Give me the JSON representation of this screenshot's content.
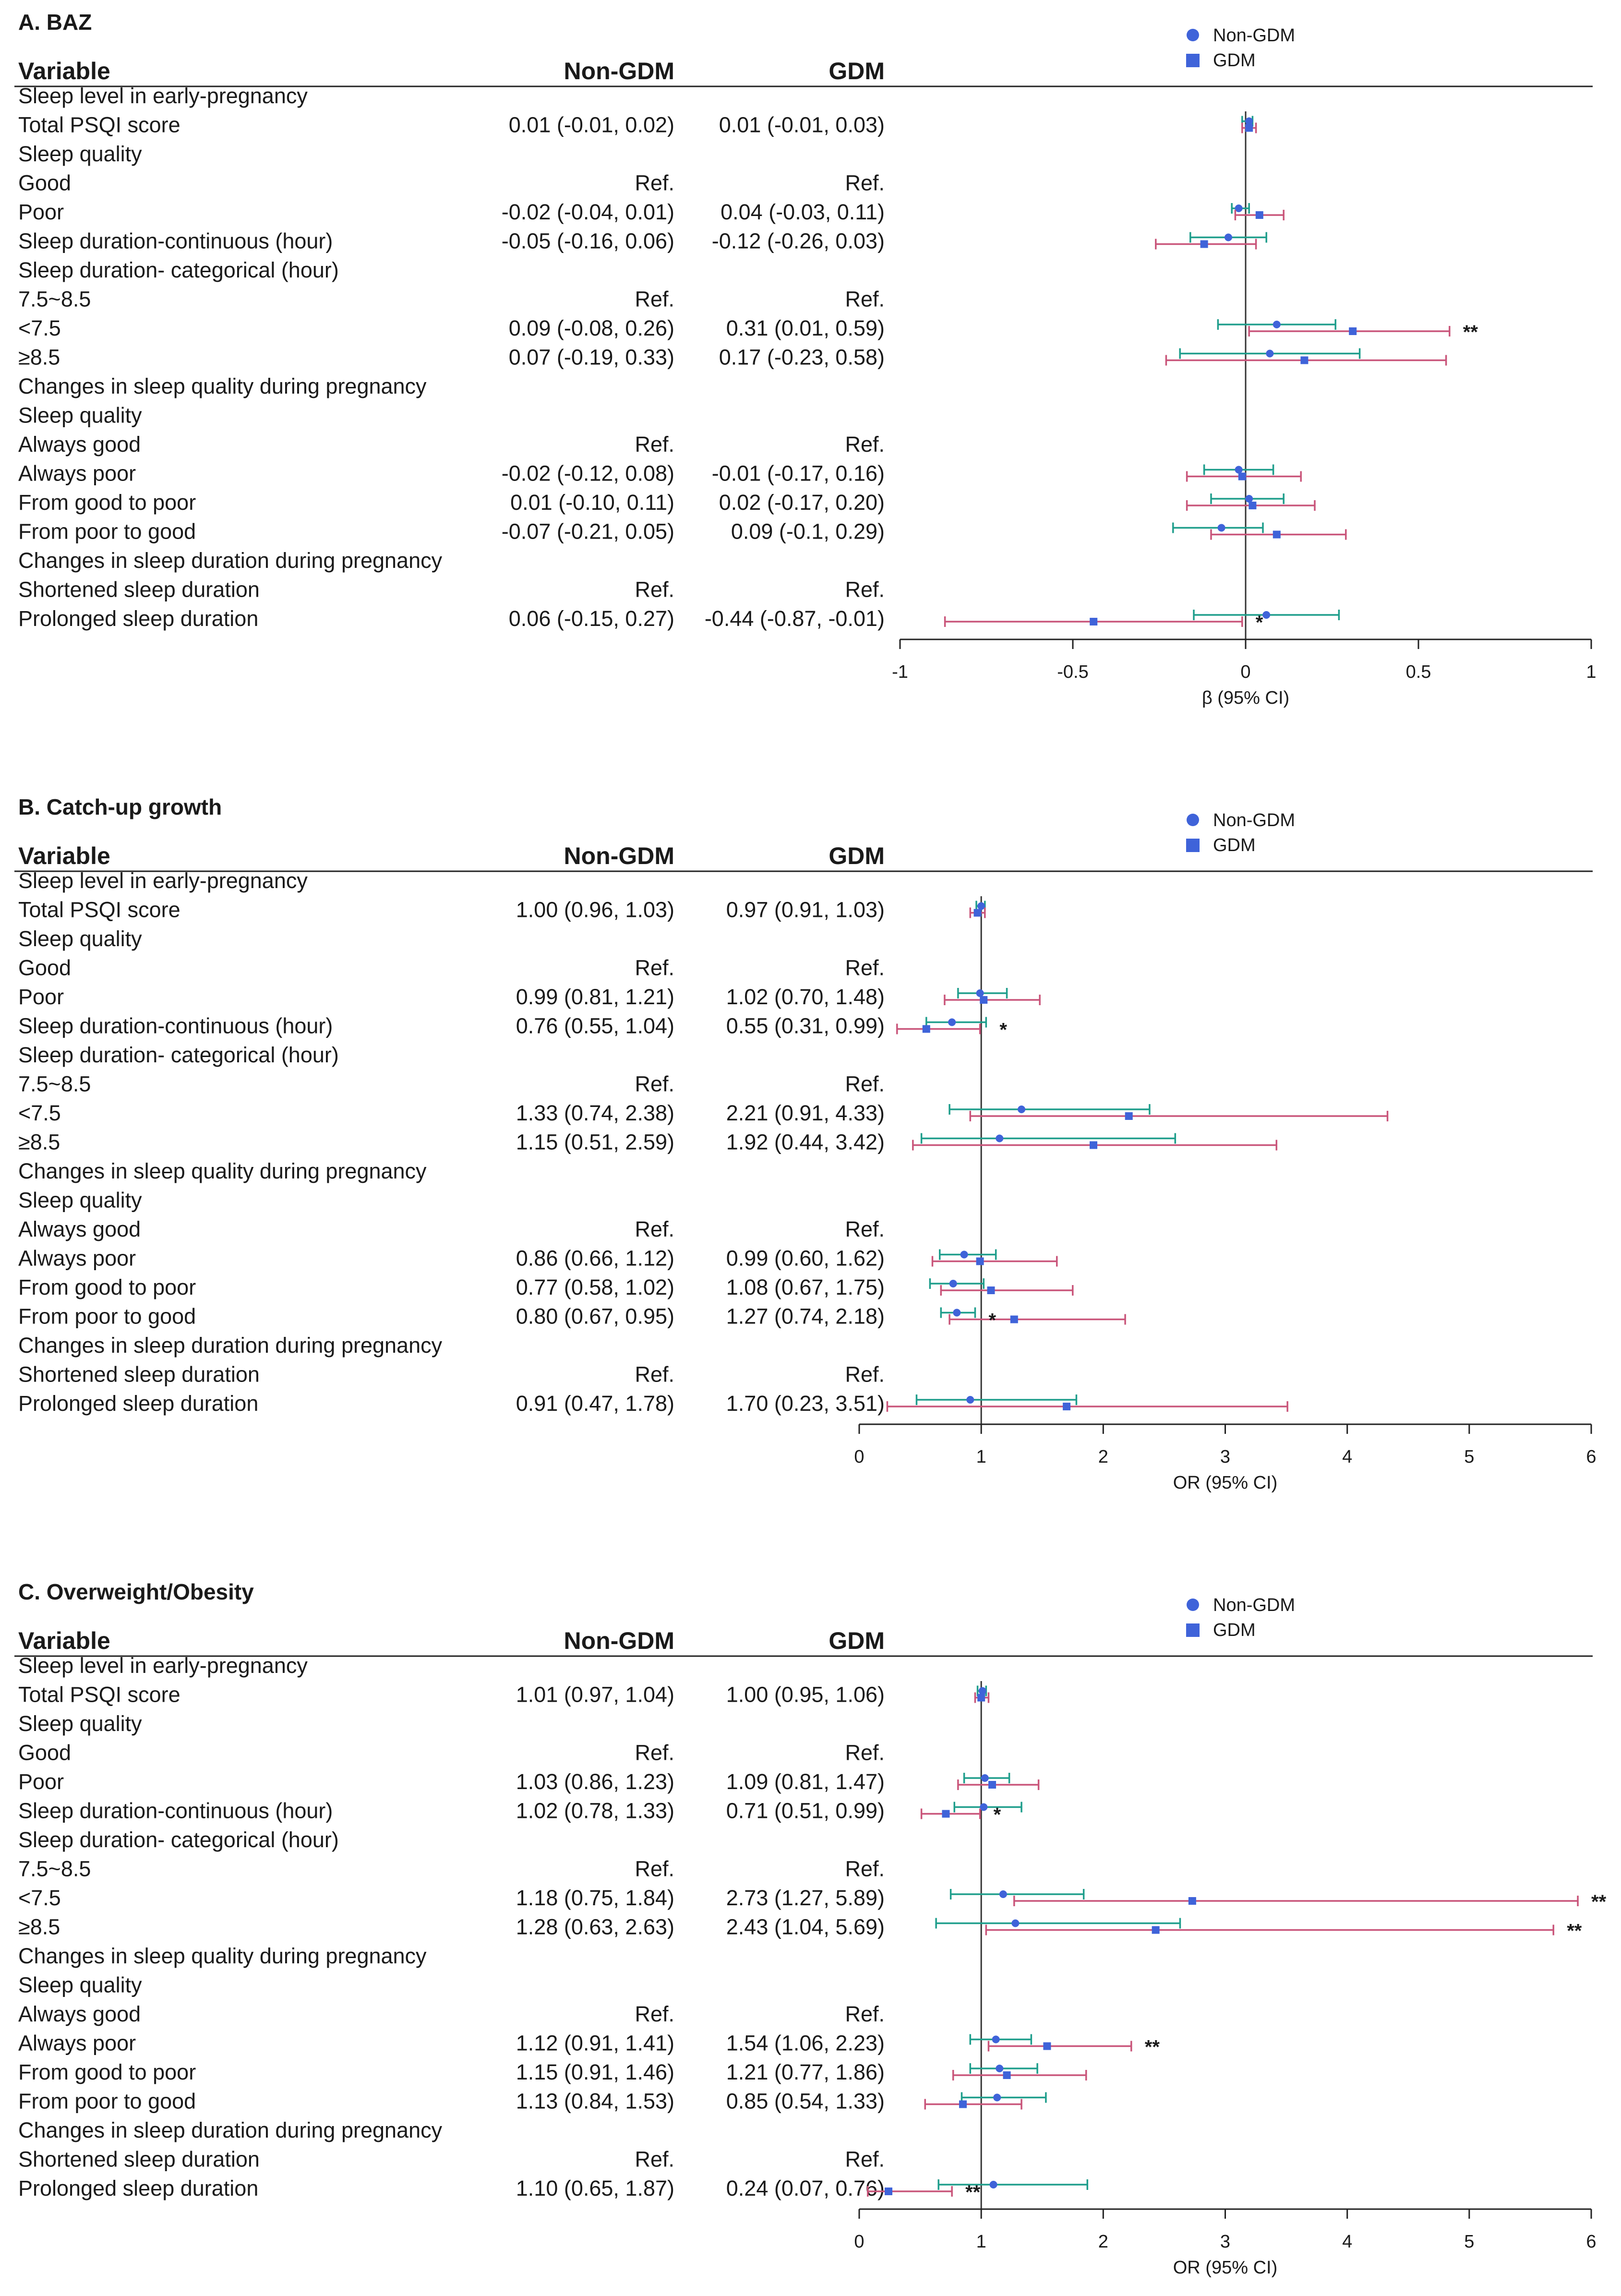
{
  "colors": {
    "non_gdm": "#1f9e8c",
    "gdm": "#c9557a",
    "marker": "#3f63d9"
  },
  "chart_data": [
    {
      "type": "forest",
      "title": "A. BAZ",
      "xlabel": "β (95% CI)",
      "xlim": [
        -1,
        1
      ],
      "reference": 0,
      "xticks": [
        "-1",
        "-0.5",
        "0",
        "0.5",
        "1"
      ],
      "tick_values": [
        -1,
        -0.5,
        0,
        0.5,
        1
      ],
      "legend": [
        "Non-GDM",
        "GDM"
      ],
      "header": {
        "variable": "Variable",
        "non_gdm": "Non-GDM",
        "gdm": "GDM"
      },
      "rows": [
        {
          "label": "Sleep level in early-pregnancy"
        },
        {
          "label": "Total PSQI score",
          "non_gdm_text": "0.01 (-0.01, 0.02)",
          "gdm_text": "0.01 (-0.01, 0.03)",
          "non_gdm": [
            0.01,
            -0.01,
            0.02
          ],
          "gdm": [
            0.01,
            -0.01,
            0.03
          ]
        },
        {
          "label": "Sleep quality"
        },
        {
          "label": "Good",
          "non_gdm_text": "Ref.",
          "gdm_text": "Ref."
        },
        {
          "label": "Poor",
          "non_gdm_text": "-0.02 (-0.04, 0.01)",
          "gdm_text": "0.04 (-0.03, 0.11)",
          "non_gdm": [
            -0.02,
            -0.04,
            0.01
          ],
          "gdm": [
            0.04,
            -0.03,
            0.11
          ]
        },
        {
          "label": "Sleep duration-continuous (hour)",
          "non_gdm_text": "-0.05 (-0.16, 0.06)",
          "gdm_text": "-0.12 (-0.26, 0.03)",
          "non_gdm": [
            -0.05,
            -0.16,
            0.06
          ],
          "gdm": [
            -0.12,
            -0.26,
            0.03
          ]
        },
        {
          "label": "Sleep duration- categorical (hour)"
        },
        {
          "label": "7.5~8.5",
          "non_gdm_text": "Ref.",
          "gdm_text": "Ref."
        },
        {
          "label": "<7.5",
          "non_gdm_text": "0.09 (-0.08, 0.26)",
          "gdm_text": "0.31 (0.01, 0.59)",
          "non_gdm": [
            0.09,
            -0.08,
            0.26
          ],
          "gdm": [
            0.31,
            0.01,
            0.59
          ],
          "star": "**",
          "star_at": "gdm"
        },
        {
          "label": "≥8.5",
          "non_gdm_text": "0.07 (-0.19, 0.33)",
          "gdm_text": "0.17 (-0.23, 0.58)",
          "non_gdm": [
            0.07,
            -0.19,
            0.33
          ],
          "gdm": [
            0.17,
            -0.23,
            0.58
          ]
        },
        {
          "label": "Changes in sleep quality during pregnancy"
        },
        {
          "label": "Sleep quality"
        },
        {
          "label": "Always good",
          "non_gdm_text": "Ref.",
          "gdm_text": "Ref."
        },
        {
          "label": "Always poor",
          "non_gdm_text": "-0.02 (-0.12, 0.08)",
          "gdm_text": "-0.01 (-0.17, 0.16)",
          "non_gdm": [
            -0.02,
            -0.12,
            0.08
          ],
          "gdm": [
            -0.01,
            -0.17,
            0.16
          ]
        },
        {
          "label": "From good to poor",
          "non_gdm_text": "0.01 (-0.10, 0.11)",
          "gdm_text": "0.02 (-0.17, 0.20)",
          "non_gdm": [
            0.01,
            -0.1,
            0.11
          ],
          "gdm": [
            0.02,
            -0.17,
            0.2
          ]
        },
        {
          "label": "From poor to good",
          "non_gdm_text": "-0.07 (-0.21, 0.05)",
          "gdm_text": "0.09 (-0.1, 0.29)",
          "non_gdm": [
            -0.07,
            -0.21,
            0.05
          ],
          "gdm": [
            0.09,
            -0.1,
            0.29
          ]
        },
        {
          "label": "Changes in sleep duration during pregnancy"
        },
        {
          "label": "Shortened sleep duration",
          "non_gdm_text": "Ref.",
          "gdm_text": "Ref."
        },
        {
          "label": "Prolonged sleep duration",
          "non_gdm_text": "0.06 (-0.15, 0.27)",
          "gdm_text": "-0.44 (-0.87, -0.01)",
          "non_gdm": [
            0.06,
            -0.15,
            0.27
          ],
          "gdm": [
            -0.44,
            -0.87,
            -0.01
          ],
          "star": "*",
          "star_at": "gdm"
        }
      ]
    },
    {
      "type": "forest",
      "title": "B. Catch-up growth",
      "xlabel": "OR (95% CI)",
      "xlim": [
        0,
        6
      ],
      "reference": 1,
      "xticks": [
        "0",
        "1",
        "2",
        "3",
        "4",
        "5",
        "6"
      ],
      "tick_values": [
        0,
        1,
        2,
        3,
        4,
        5,
        6
      ],
      "legend": [
        "Non-GDM",
        "GDM"
      ],
      "header": {
        "variable": "Variable",
        "non_gdm": "Non-GDM",
        "gdm": "GDM"
      },
      "rows": [
        {
          "label": "Sleep level in early-pregnancy"
        },
        {
          "label": "Total PSQI score",
          "non_gdm_text": "1.00 (0.96, 1.03)",
          "gdm_text": "0.97 (0.91, 1.03)",
          "non_gdm": [
            1.0,
            0.96,
            1.03
          ],
          "gdm": [
            0.97,
            0.91,
            1.03
          ]
        },
        {
          "label": "Sleep quality"
        },
        {
          "label": "Good",
          "non_gdm_text": "Ref.",
          "gdm_text": "Ref."
        },
        {
          "label": "Poor",
          "non_gdm_text": "0.99 (0.81, 1.21)",
          "gdm_text": "1.02 (0.70, 1.48)",
          "non_gdm": [
            0.99,
            0.81,
            1.21
          ],
          "gdm": [
            1.02,
            0.7,
            1.48
          ]
        },
        {
          "label": "Sleep duration-continuous (hour)",
          "non_gdm_text": "0.76 (0.55, 1.04)",
          "gdm_text": "0.55 (0.31, 0.99)",
          "non_gdm": [
            0.76,
            0.55,
            1.04
          ],
          "gdm": [
            0.55,
            0.31,
            0.99
          ],
          "star": "*",
          "star_at": "non_gdm"
        },
        {
          "label": "Sleep duration- categorical (hour)"
        },
        {
          "label": "7.5~8.5",
          "non_gdm_text": "Ref.",
          "gdm_text": "Ref."
        },
        {
          "label": "<7.5",
          "non_gdm_text": "1.33 (0.74, 2.38)",
          "gdm_text": "2.21 (0.91, 4.33)",
          "non_gdm": [
            1.33,
            0.74,
            2.38
          ],
          "gdm": [
            2.21,
            0.91,
            4.33
          ]
        },
        {
          "label": "≥8.5",
          "non_gdm_text": "1.15 (0.51, 2.59)",
          "gdm_text": "1.92 (0.44, 3.42)",
          "non_gdm": [
            1.15,
            0.51,
            2.59
          ],
          "gdm": [
            1.92,
            0.44,
            3.42
          ]
        },
        {
          "label": "Changes in sleep quality during pregnancy"
        },
        {
          "label": "Sleep quality"
        },
        {
          "label": "Always good",
          "non_gdm_text": "Ref.",
          "gdm_text": "Ref."
        },
        {
          "label": "Always poor",
          "non_gdm_text": "0.86 (0.66, 1.12)",
          "gdm_text": "0.99 (0.60, 1.62)",
          "non_gdm": [
            0.86,
            0.66,
            1.12
          ],
          "gdm": [
            0.99,
            0.6,
            1.62
          ]
        },
        {
          "label": "From good to poor",
          "non_gdm_text": "0.77 (0.58, 1.02)",
          "gdm_text": "1.08 (0.67, 1.75)",
          "non_gdm": [
            0.77,
            0.58,
            1.02
          ],
          "gdm": [
            1.08,
            0.67,
            1.75
          ]
        },
        {
          "label": "From poor to good",
          "non_gdm_text": "0.80 (0.67, 0.95)",
          "gdm_text": "1.27 (0.74, 2.18)",
          "non_gdm": [
            0.8,
            0.67,
            0.95
          ],
          "gdm": [
            1.27,
            0.74,
            2.18
          ],
          "star": "*",
          "star_at": "non_gdm"
        },
        {
          "label": "Changes in sleep duration during pregnancy"
        },
        {
          "label": "Shortened sleep duration",
          "non_gdm_text": "Ref.",
          "gdm_text": "Ref."
        },
        {
          "label": "Prolonged sleep duration",
          "non_gdm_text": "0.91 (0.47, 1.78)",
          "gdm_text": "1.70 (0.23, 3.51)",
          "non_gdm": [
            0.91,
            0.47,
            1.78
          ],
          "gdm": [
            1.7,
            0.23,
            3.51
          ]
        }
      ]
    },
    {
      "type": "forest",
      "title": "C. Overweight/Obesity",
      "xlabel": "OR (95% CI)",
      "xlim": [
        0,
        6
      ],
      "reference": 1,
      "xticks": [
        "0",
        "1",
        "2",
        "3",
        "4",
        "5",
        "6"
      ],
      "tick_values": [
        0,
        1,
        2,
        3,
        4,
        5,
        6
      ],
      "legend": [
        "Non-GDM",
        "GDM"
      ],
      "header": {
        "variable": "Variable",
        "non_gdm": "Non-GDM",
        "gdm": "GDM"
      },
      "rows": [
        {
          "label": "Sleep level in early-pregnancy"
        },
        {
          "label": "Total PSQI score",
          "non_gdm_text": "1.01 (0.97, 1.04)",
          "gdm_text": "1.00 (0.95, 1.06)",
          "non_gdm": [
            1.01,
            0.97,
            1.04
          ],
          "gdm": [
            1.0,
            0.95,
            1.06
          ]
        },
        {
          "label": "Sleep quality"
        },
        {
          "label": "Good",
          "non_gdm_text": "Ref.",
          "gdm_text": "Ref."
        },
        {
          "label": "Poor",
          "non_gdm_text": "1.03 (0.86, 1.23)",
          "gdm_text": "1.09 (0.81, 1.47)",
          "non_gdm": [
            1.03,
            0.86,
            1.23
          ],
          "gdm": [
            1.09,
            0.81,
            1.47
          ]
        },
        {
          "label": "Sleep duration-continuous (hour)",
          "non_gdm_text": "1.02 (0.78, 1.33)",
          "gdm_text": "0.71 (0.51, 0.99)",
          "non_gdm": [
            1.02,
            0.78,
            1.33
          ],
          "gdm": [
            0.71,
            0.51,
            0.99
          ],
          "star": "*",
          "star_at": "gdm"
        },
        {
          "label": "Sleep duration- categorical (hour)"
        },
        {
          "label": "7.5~8.5",
          "non_gdm_text": "Ref.",
          "gdm_text": "Ref."
        },
        {
          "label": "<7.5",
          "non_gdm_text": "1.18 (0.75, 1.84)",
          "gdm_text": "2.73 (1.27, 5.89)",
          "non_gdm": [
            1.18,
            0.75,
            1.84
          ],
          "gdm": [
            2.73,
            1.27,
            5.89
          ],
          "star": "**",
          "star_at": "gdm"
        },
        {
          "label": "≥8.5",
          "non_gdm_text": "1.28 (0.63, 2.63)",
          "gdm_text": "2.43 (1.04, 5.69)",
          "non_gdm": [
            1.28,
            0.63,
            2.63
          ],
          "gdm": [
            2.43,
            1.04,
            5.69
          ],
          "star": "**",
          "star_at": "gdm"
        },
        {
          "label": "Changes in sleep quality during pregnancy"
        },
        {
          "label": "Sleep quality"
        },
        {
          "label": "Always good",
          "non_gdm_text": "Ref.",
          "gdm_text": "Ref."
        },
        {
          "label": "Always poor",
          "non_gdm_text": "1.12 (0.91, 1.41)",
          "gdm_text": "1.54 (1.06, 2.23)",
          "non_gdm": [
            1.12,
            0.91,
            1.41
          ],
          "gdm": [
            1.54,
            1.06,
            2.23
          ],
          "star": "**",
          "star_at": "gdm"
        },
        {
          "label": "From good to poor",
          "non_gdm_text": "1.15 (0.91, 1.46)",
          "gdm_text": "1.21 (0.77, 1.86)",
          "non_gdm": [
            1.15,
            0.91,
            1.46
          ],
          "gdm": [
            1.21,
            0.77,
            1.86
          ]
        },
        {
          "label": "From poor to good",
          "non_gdm_text": "1.13 (0.84, 1.53)",
          "gdm_text": "0.85 (0.54, 1.33)",
          "non_gdm": [
            1.13,
            0.84,
            1.53
          ],
          "gdm": [
            0.85,
            0.54,
            1.33
          ]
        },
        {
          "label": "Changes in sleep duration during pregnancy"
        },
        {
          "label": "Shortened sleep duration",
          "non_gdm_text": "Ref.",
          "gdm_text": "Ref."
        },
        {
          "label": "Prolonged sleep duration",
          "non_gdm_text": "1.10 (0.65, 1.87)",
          "gdm_text": "0.24 (0.07, 0.76)",
          "non_gdm": [
            1.1,
            0.65,
            1.87
          ],
          "gdm": [
            0.24,
            0.07,
            0.76
          ],
          "star": "**",
          "star_at": "gdm"
        }
      ]
    }
  ]
}
